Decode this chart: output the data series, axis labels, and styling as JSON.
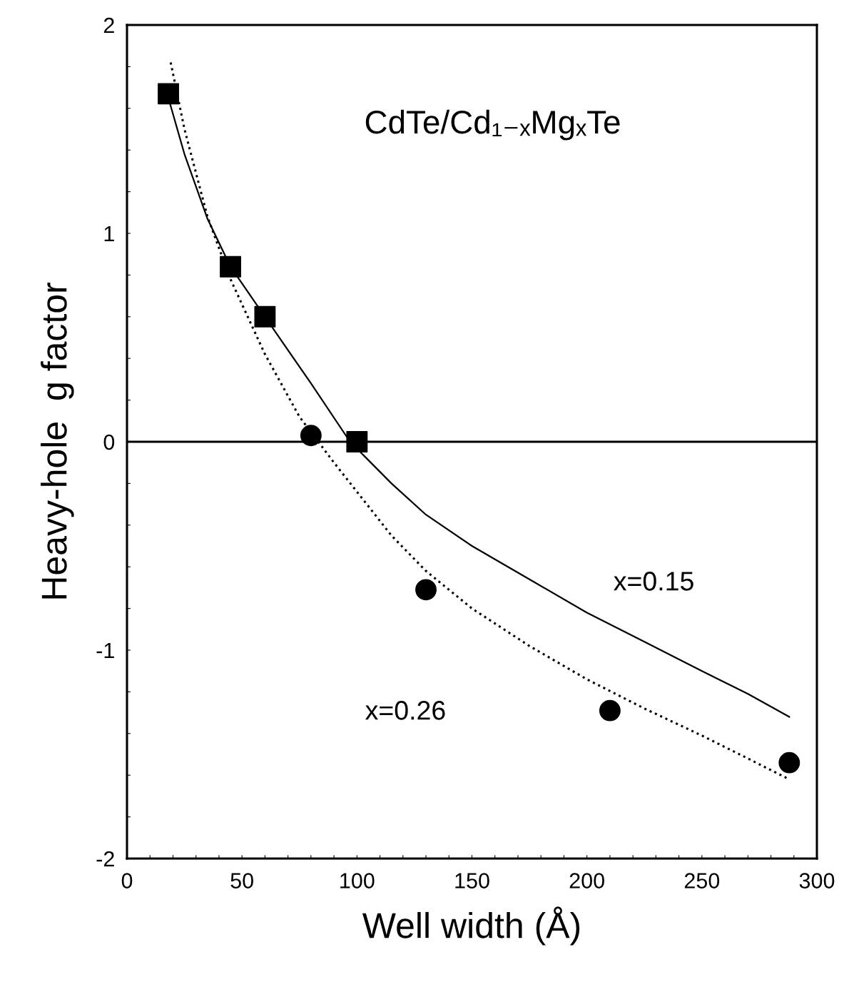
{
  "chart_data": {
    "type": "scatter",
    "xlabel": "Well width (Å)",
    "ylabel": "Heavy-hole  g factor",
    "xlim": [
      0,
      300
    ],
    "ylim": [
      -2,
      2
    ],
    "xticks": [
      0,
      {
        "value": 10,
        "label": null
      },
      {
        "value": 20,
        "label": null
      },
      {
        "value": 30,
        "label": null
      },
      {
        "value": 40,
        "label": null
      },
      50,
      {
        "value": 60,
        "label": null
      },
      {
        "value": 70,
        "label": null
      },
      {
        "value": 80,
        "label": null
      },
      {
        "value": 90,
        "label": null
      },
      100,
      {
        "value": 110,
        "label": null
      },
      {
        "value": 120,
        "label": null
      },
      {
        "value": 130,
        "label": null
      },
      {
        "value": 140,
        "label": null
      },
      150,
      {
        "value": 160,
        "label": null
      },
      {
        "value": 170,
        "label": null
      },
      {
        "value": 180,
        "label": null
      },
      {
        "value": 190,
        "label": null
      },
      200,
      {
        "value": 210,
        "label": null
      },
      {
        "value": 220,
        "label": null
      },
      {
        "value": 230,
        "label": null
      },
      {
        "value": 240,
        "label": null
      },
      250,
      {
        "value": 260,
        "label": null
      },
      {
        "value": 270,
        "label": null
      },
      {
        "value": 280,
        "label": null
      },
      {
        "value": 290,
        "label": null
      },
      300
    ],
    "yticks": [
      -2,
      {
        "value": -1.8,
        "label": null
      },
      {
        "value": -1.6,
        "label": null
      },
      {
        "value": -1.4,
        "label": null
      },
      {
        "value": -1.2,
        "label": null
      },
      -1,
      {
        "value": -0.8,
        "label": null
      },
      {
        "value": -0.6,
        "label": null
      },
      {
        "value": -0.4,
        "label": null
      },
      {
        "value": -0.2,
        "label": null
      },
      0,
      {
        "value": 0.2,
        "label": null
      },
      {
        "value": 0.4,
        "label": null
      },
      {
        "value": 0.6,
        "label": null
      },
      {
        "value": 0.8,
        "label": null
      },
      1,
      {
        "value": 1.2,
        "label": null
      },
      {
        "value": 1.4,
        "label": null
      },
      {
        "value": 1.6,
        "label": null
      },
      {
        "value": 1.8,
        "label": null
      },
      2
    ],
    "grid": false,
    "legend": false,
    "series": [
      {
        "marker": "square",
        "color": "#000000",
        "x": [
          18,
          45,
          60,
          100
        ],
        "values": [
          1.67,
          0.84,
          0.6,
          0.0
        ]
      },
      {
        "marker": "circle",
        "color": "#000000",
        "x": [
          80,
          130,
          210,
          288
        ],
        "values": [
          0.03,
          -0.71,
          -1.29,
          -1.54
        ]
      },
      {
        "type": "line",
        "line_style": "solid",
        "marker": "none",
        "color": "#000000",
        "x": [
          18,
          25,
          35,
          45,
          60,
          70,
          80,
          97,
          115,
          130,
          150,
          175,
          200,
          225,
          250,
          270,
          288
        ],
        "values": [
          1.65,
          1.38,
          1.07,
          0.84,
          0.6,
          0.44,
          0.28,
          0.0,
          -0.2,
          -0.35,
          -0.5,
          -0.66,
          -0.82,
          -0.96,
          -1.1,
          -1.21,
          -1.32
        ]
      },
      {
        "type": "line",
        "line_style": "dotted",
        "marker": "none",
        "color": "#000000",
        "x": [
          19,
          25,
          35,
          45,
          60,
          75,
          90,
          100,
          115,
          130,
          150,
          175,
          200,
          225,
          250,
          270,
          288
        ],
        "values": [
          1.82,
          1.5,
          1.08,
          0.78,
          0.42,
          0.12,
          -0.1,
          -0.24,
          -0.45,
          -0.62,
          -0.8,
          -0.98,
          -1.14,
          -1.28,
          -1.41,
          -1.52,
          -1.62
        ]
      }
    ],
    "ref_lines": [
      {
        "axis": "y",
        "value": 0,
        "label": null,
        "color": "#000000",
        "line_style": "solid"
      }
    ],
    "annotations": [
      "CdTe/Cd₁₋ₓMgₓTe",
      "x=0.15",
      "x=0.26"
    ]
  }
}
